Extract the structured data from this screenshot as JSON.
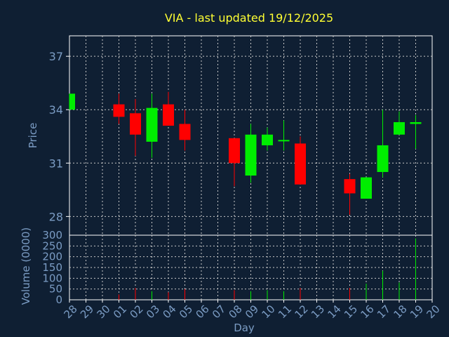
{
  "chart_data": [
    {
      "type": "candlestick",
      "title": "VIA - last updated 19/12/2025",
      "ylabel": "Price",
      "ylim": [
        26.95,
        38.15
      ],
      "yticks": [
        28,
        31,
        34,
        37
      ],
      "grid": true,
      "x": [
        "28",
        "29",
        "30",
        "01",
        "02",
        "03",
        "04",
        "05",
        "06",
        "07",
        "08",
        "09",
        "10",
        "11",
        "12",
        "13",
        "14",
        "15",
        "16",
        "17",
        "18",
        "19",
        "20"
      ],
      "candles": [
        {
          "day": "28",
          "open": 34.0,
          "high": 34.9,
          "low": 34.0,
          "close": 34.9
        },
        {
          "day": "01",
          "open": 34.3,
          "high": 34.9,
          "low": 33.2,
          "close": 33.6
        },
        {
          "day": "02",
          "open": 33.8,
          "high": 34.6,
          "low": 31.4,
          "close": 32.6
        },
        {
          "day": "03",
          "open": 32.2,
          "high": 34.9,
          "low": 31.3,
          "close": 34.1
        },
        {
          "day": "04",
          "open": 34.3,
          "high": 35.0,
          "low": 33.1,
          "close": 33.1
        },
        {
          "day": "05",
          "open": 33.2,
          "high": 34.0,
          "low": 31.7,
          "close": 32.3
        },
        {
          "day": "08",
          "open": 32.4,
          "high": 32.4,
          "low": 29.7,
          "close": 31.0
        },
        {
          "day": "09",
          "open": 30.3,
          "high": 33.2,
          "low": 29.9,
          "close": 32.6
        },
        {
          "day": "10",
          "open": 32.0,
          "high": 33.0,
          "low": 31.7,
          "close": 32.6
        },
        {
          "day": "11",
          "open": 32.3,
          "high": 33.4,
          "low": 31.7,
          "close": 32.3
        },
        {
          "day": "12",
          "open": 32.1,
          "high": 32.5,
          "low": 29.8,
          "close": 29.8
        },
        {
          "day": "15",
          "open": 30.1,
          "high": 30.4,
          "low": 28.1,
          "close": 29.3
        },
        {
          "day": "16",
          "open": 29.0,
          "high": 30.2,
          "low": 29.0,
          "close": 30.2
        },
        {
          "day": "17",
          "open": 30.5,
          "high": 34.0,
          "low": 30.2,
          "close": 32.0
        },
        {
          "day": "18",
          "open": 32.6,
          "high": 33.9,
          "low": 32.6,
          "close": 33.3
        },
        {
          "day": "19",
          "open": 33.2,
          "high": 33.7,
          "low": 31.8,
          "close": 33.3
        }
      ]
    },
    {
      "type": "bar",
      "ylabel": "Volume (0000)",
      "xlabel": "Day",
      "ylim": [
        0,
        300
      ],
      "yticks": [
        0,
        50,
        100,
        150,
        200,
        250,
        300
      ],
      "grid": true,
      "categories": [
        "28",
        "29",
        "30",
        "01",
        "02",
        "03",
        "04",
        "05",
        "06",
        "07",
        "08",
        "09",
        "10",
        "11",
        "12",
        "13",
        "14",
        "15",
        "16",
        "17",
        "18",
        "19",
        "20"
      ],
      "bars": [
        {
          "day": "01",
          "value": 25,
          "direction": "down"
        },
        {
          "day": "02",
          "value": 55,
          "direction": "down"
        },
        {
          "day": "03",
          "value": 40,
          "direction": "up"
        },
        {
          "day": "04",
          "value": 35,
          "direction": "down"
        },
        {
          "day": "05",
          "value": 50,
          "direction": "down"
        },
        {
          "day": "08",
          "value": 45,
          "direction": "down"
        },
        {
          "day": "09",
          "value": 40,
          "direction": "up"
        },
        {
          "day": "10",
          "value": 45,
          "direction": "up"
        },
        {
          "day": "11",
          "value": 40,
          "direction": "up"
        },
        {
          "day": "12",
          "value": 55,
          "direction": "down"
        },
        {
          "day": "15",
          "value": 55,
          "direction": "down"
        },
        {
          "day": "16",
          "value": 75,
          "direction": "up"
        },
        {
          "day": "17",
          "value": 135,
          "direction": "up"
        },
        {
          "day": "18",
          "value": 80,
          "direction": "up"
        },
        {
          "day": "19",
          "value": 285,
          "direction": "up"
        }
      ]
    }
  ],
  "colors": {
    "background": "#0f1f33",
    "plot_border": "#ffffff",
    "grid": "#c8c8c8",
    "title": "#ffff33",
    "axis_text": "#7b9cc4",
    "up": "#00ee00",
    "down": "#ff0000"
  }
}
